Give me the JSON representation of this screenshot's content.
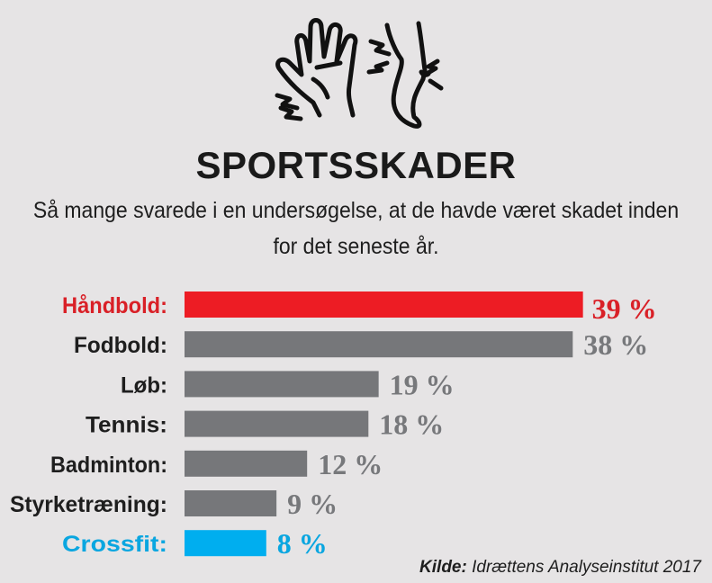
{
  "title": "SPORTSSKADER",
  "subtitle": "Så mange svarede i en undersøgelse, at de havde været skadet inden for det seneste år.",
  "icon": "hand-and-leg-injury-icon",
  "source": {
    "label": "Kilde:",
    "text": "Idrættens Analyseinstitut 2017"
  },
  "chart_data": {
    "type": "bar",
    "orientation": "horizontal",
    "unit": "%",
    "categories": [
      "Håndbold:",
      "Fodbold:",
      "Løb:",
      "Tennis:",
      "Badminton:",
      "Styrketræning:",
      "Crossfit:"
    ],
    "values": [
      39,
      38,
      19,
      18,
      12,
      9,
      8
    ],
    "value_labels": [
      "39 %",
      "38 %",
      "19 %",
      "18 %",
      "12 %",
      "9 %",
      "8 %"
    ],
    "colors": [
      "#ed1c24",
      "#76777a",
      "#76777a",
      "#76777a",
      "#76777a",
      "#76777a",
      "#00aeef"
    ],
    "label_colors": [
      "#d92027",
      "#1e1e1e",
      "#1e1e1e",
      "#1e1e1e",
      "#1e1e1e",
      "#1e1e1e",
      "#0aa6e0"
    ],
    "value_label_colors": [
      "#d92027",
      "#77787b",
      "#77787b",
      "#77787b",
      "#77787b",
      "#77787b",
      "#0aa6e0"
    ],
    "grid": false
  }
}
